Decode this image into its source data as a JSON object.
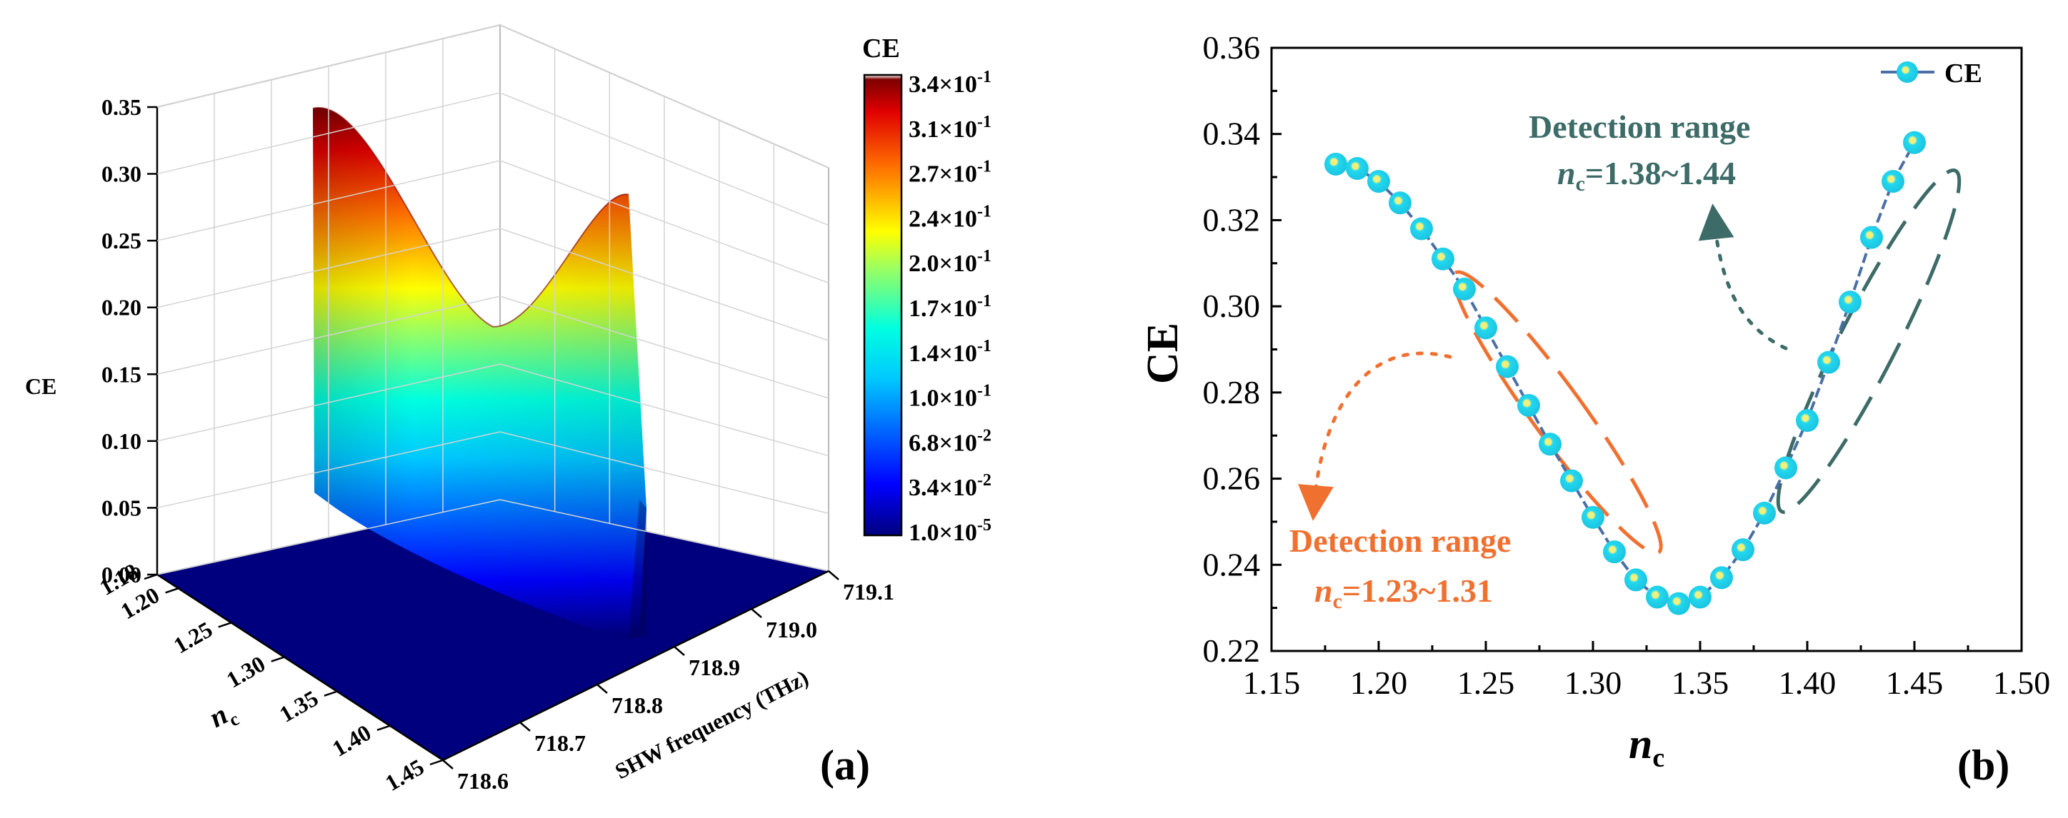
{
  "chart_data": [
    {
      "type": "surface3d",
      "panel_label": "(a)",
      "title": "",
      "zlabel": "CE",
      "ylabel_base": "n",
      "ylabel_sub": "c",
      "xlabel": "SHW frequency (THz)",
      "z_ticks": [
        "0.00",
        "0.05",
        "0.10",
        "0.15",
        "0.20",
        "0.25",
        "0.30",
        "0.35"
      ],
      "z_range": [
        0,
        0.35
      ],
      "nc_ticks": [
        "1.18",
        "1.20",
        "1.25",
        "1.30",
        "1.35",
        "1.40",
        "1.45"
      ],
      "nc_range": [
        1.18,
        1.45
      ],
      "freq_ticks": [
        "718.6",
        "718.7",
        "718.8",
        "718.9",
        "719.0",
        "719.1"
      ],
      "freq_range": [
        718.6,
        719.1
      ],
      "peak_ce_at_nc_min": 0.333,
      "peak_ce_at_nc_max": 0.338,
      "ridge_min_ce": 0.231,
      "colorbar": {
        "title": "CE",
        "labels": [
          {
            "m": "3.4",
            "e": "-1"
          },
          {
            "m": "3.1",
            "e": "-1"
          },
          {
            "m": "2.7",
            "e": "-1"
          },
          {
            "m": "2.4",
            "e": "-1"
          },
          {
            "m": "2.0",
            "e": "-1"
          },
          {
            "m": "1.7",
            "e": "-1"
          },
          {
            "m": "1.4",
            "e": "-1"
          },
          {
            "m": "1.0",
            "e": "-1"
          },
          {
            "m": "6.8",
            "e": "-2"
          },
          {
            "m": "3.4",
            "e": "-2"
          },
          {
            "m": "1.0",
            "e": "-5"
          }
        ],
        "colors": [
          "#00007f",
          "#0000ff",
          "#007fff",
          "#00ffff",
          "#7fff7f",
          "#ffff00",
          "#ff7f00",
          "#ff0000",
          "#7f0000"
        ]
      }
    },
    {
      "type": "line",
      "panel_label": "(b)",
      "title": "",
      "xlabel_base": "n",
      "xlabel_sub": "c",
      "ylabel": "CE",
      "xlim": [
        1.15,
        1.5
      ],
      "ylim": [
        0.22,
        0.36
      ],
      "x_ticks": [
        "1.15",
        "1.20",
        "1.25",
        "1.30",
        "1.35",
        "1.40",
        "1.45",
        "1.50"
      ],
      "y_ticks": [
        "0.22",
        "0.24",
        "0.26",
        "0.28",
        "0.30",
        "0.32",
        "0.34",
        "0.36"
      ],
      "series": [
        {
          "name": "CE",
          "line_color": "#4a6fa5",
          "marker_color": "#22d8f0",
          "marker_center": "#f0f07a",
          "x": [
            1.18,
            1.19,
            1.2,
            1.21,
            1.22,
            1.23,
            1.24,
            1.25,
            1.26,
            1.27,
            1.28,
            1.29,
            1.3,
            1.31,
            1.32,
            1.33,
            1.34,
            1.35,
            1.36,
            1.37,
            1.38,
            1.39,
            1.4,
            1.41,
            1.42,
            1.43,
            1.44,
            1.45
          ],
          "y": [
            0.333,
            0.332,
            0.329,
            0.324,
            0.318,
            0.311,
            0.304,
            0.295,
            0.286,
            0.277,
            0.268,
            0.2595,
            0.251,
            0.243,
            0.2365,
            0.2325,
            0.231,
            0.2325,
            0.237,
            0.2435,
            0.252,
            0.2625,
            0.2735,
            0.287,
            0.301,
            0.316,
            0.329,
            0.338
          ]
        }
      ],
      "annotations": [
        {
          "id": "left",
          "title": "Detection range",
          "base": "n",
          "sub": "c",
          "range": "=1.23~1.31",
          "color": "#f07030"
        },
        {
          "id": "right",
          "title": "Detection range",
          "base": "n",
          "sub": "c",
          "range": "=1.38~1.44",
          "color": "#3d6b68"
        }
      ],
      "legend_position": "top-right"
    }
  ]
}
